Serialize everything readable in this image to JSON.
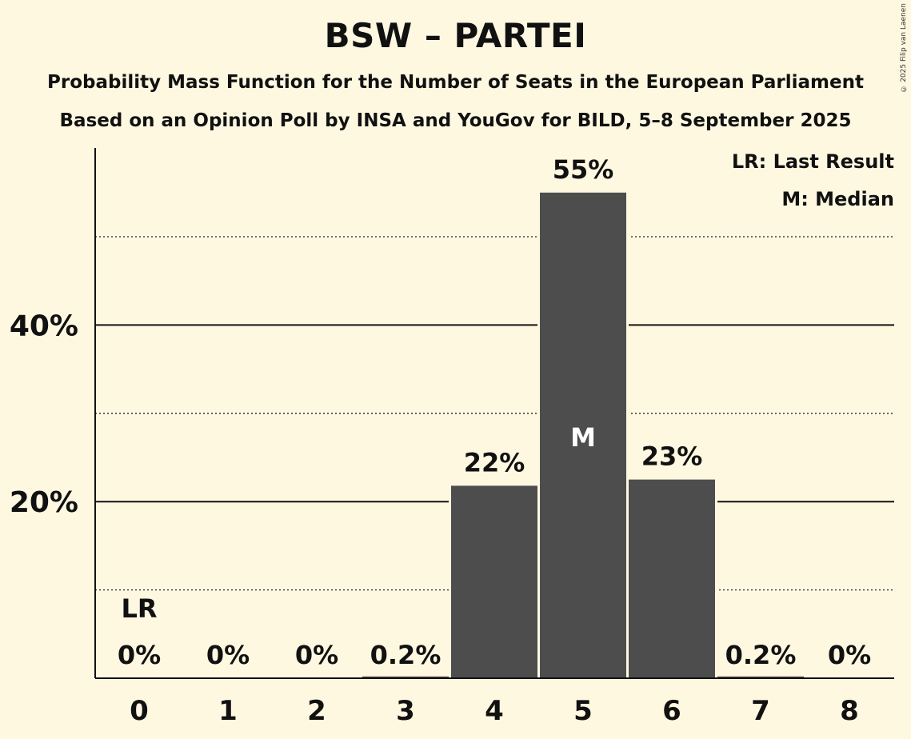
{
  "title": "BSW – PARTEI",
  "subtitle_1": "Probability Mass Function for the Number of Seats in the European Parliament",
  "subtitle_2": "Based on an Opinion Poll by INSA and YouGov for BILD, 5–8 September 2025",
  "copyright": "© 2025 Filip van Laenen",
  "legend": {
    "last_result": "LR: Last Result",
    "median": "M: Median"
  },
  "colors": {
    "background": "#fff8e1",
    "bar": "#4d4d4d",
    "median_marker": "#ffffff"
  },
  "chart_data": {
    "type": "bar",
    "categories": [
      "0",
      "1",
      "2",
      "3",
      "4",
      "5",
      "6",
      "7",
      "8"
    ],
    "values": [
      0,
      0,
      0,
      0.2,
      21.8,
      55.0,
      22.5,
      0.2,
      0
    ],
    "value_labels": [
      "0%",
      "0%",
      "0%",
      "0.2%",
      "22%",
      "55%",
      "23%",
      "0.2%",
      "0%"
    ],
    "ylim": [
      0,
      60
    ],
    "y_ticks": [
      {
        "value": 20,
        "label": "20%"
      },
      {
        "value": 40,
        "label": "40%"
      }
    ],
    "minor_gridlines": [
      10,
      30,
      50
    ],
    "grid": true,
    "last_result_index": 0,
    "last_result_label": "LR",
    "median_index": 5,
    "median_label": "M",
    "legend_position": "top-right"
  }
}
